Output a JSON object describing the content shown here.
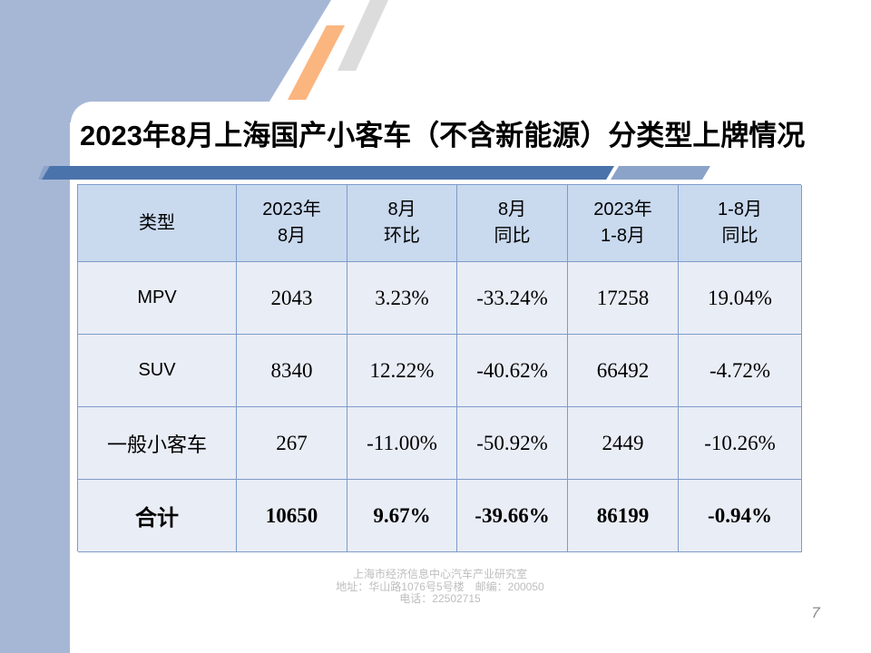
{
  "title": "2023年8月上海国产小客车（不含新能源）分类型上牌情况",
  "table": {
    "header": [
      {
        "line1": "类型",
        "line2": ""
      },
      {
        "line1": "2023年",
        "line2": "8月"
      },
      {
        "line1": "8月",
        "line2": "环比"
      },
      {
        "line1": "8月",
        "line2": "同比"
      },
      {
        "line1": "2023年",
        "line2": "1-8月"
      },
      {
        "line1": "1-8月",
        "line2": "同比"
      }
    ],
    "rows": [
      {
        "label": "MPV",
        "values": [
          "2043",
          "3.23%",
          "-33.24%",
          "17258",
          "19.04%"
        ]
      },
      {
        "label": "SUV",
        "values": [
          "8340",
          "12.22%",
          "-40.62%",
          "66492",
          "-4.72%"
        ]
      },
      {
        "label": "一般小客车",
        "values": [
          "267",
          "-11.00%",
          "-50.92%",
          "2449",
          "-10.26%"
        ]
      },
      {
        "label": "合计",
        "values": [
          "10650",
          "9.67%",
          "-39.66%",
          "86199",
          "-0.94%"
        ]
      }
    ]
  },
  "footer": {
    "line1": "上海市经济信息中心汽车产业研究室",
    "line2": "地址：华山路1076号5号楼　邮编：200050",
    "line3": "电话：22502715"
  },
  "page": {
    "number": "7"
  },
  "colors": {
    "background_blue": "#a6b7d6",
    "bar_dark_blue": "#4b73ab",
    "bar_light_blue": "#8ca3c9",
    "stripe_orange": "#fbb57f",
    "stripe_gray": "#dcdcdc",
    "table_header_fill": "#c9d9ee",
    "table_cell_fill": "#e9edf6",
    "table_border": "#7e9cc9"
  }
}
